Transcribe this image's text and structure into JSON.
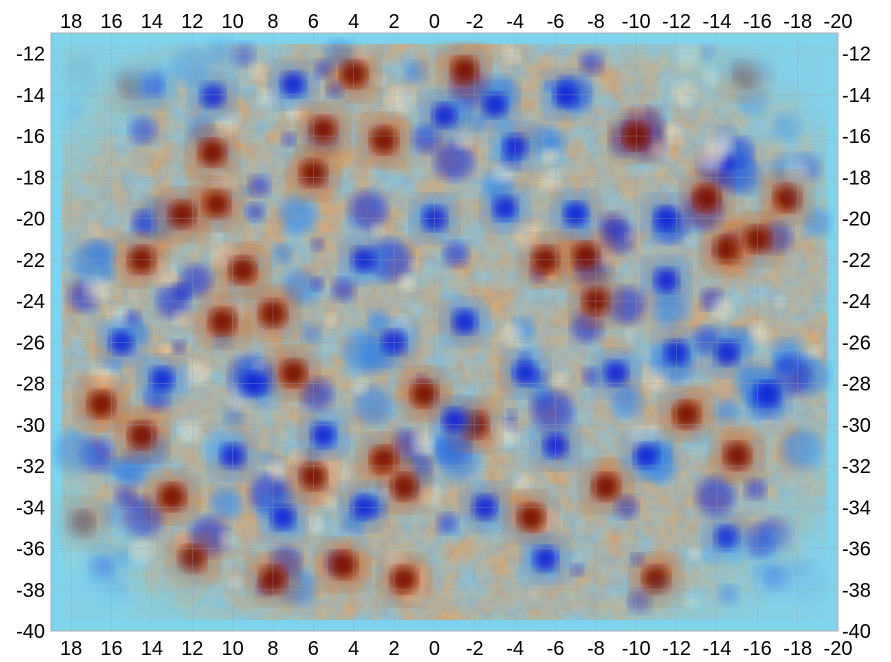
{
  "chart_data": {
    "type": "heatmap",
    "title": "",
    "xlabel": "",
    "ylabel": "",
    "x_ticks": [
      "18",
      "16",
      "14",
      "12",
      "10",
      "8",
      "6",
      "4",
      "2",
      "0",
      "-2",
      "-4",
      "-6",
      "-8",
      "-10",
      "-12",
      "-14",
      "-16",
      "-18",
      "-20"
    ],
    "y_ticks": [
      "-12",
      "-14",
      "-16",
      "-18",
      "-20",
      "-22",
      "-24",
      "-26",
      "-28",
      "-30",
      "-32",
      "-34",
      "-36",
      "-38",
      "-40"
    ],
    "xlim": [
      19,
      -20
    ],
    "ylim": [
      -40,
      -11
    ],
    "x_axis_reversed": true,
    "axes": [
      "top",
      "bottom",
      "left",
      "right"
    ],
    "grid": true,
    "colormap": [
      "#0b1fd6",
      "#2f7fe8",
      "#8fd3f0",
      "#fff3d0",
      "#f0a050",
      "#c8500a",
      "#7a0a00"
    ],
    "edge_color": "#7fd4ec",
    "hot_spots": [
      {
        "x": 17.5,
        "y": -12.8
      },
      {
        "x": 15,
        "y": -13.5
      },
      {
        "x": 11,
        "y": -16.8
      },
      {
        "x": 10.8,
        "y": -19.3
      },
      {
        "x": 12.5,
        "y": -19.8
      },
      {
        "x": 14.5,
        "y": -22
      },
      {
        "x": 8,
        "y": -24.6
      },
      {
        "x": 9.5,
        "y": -22.5
      },
      {
        "x": 5.5,
        "y": -15.7
      },
      {
        "x": 2.5,
        "y": -16.2
      },
      {
        "x": 6,
        "y": -17.8
      },
      {
        "x": 4,
        "y": -13
      },
      {
        "x": 16.5,
        "y": -29
      },
      {
        "x": 14.5,
        "y": -30.5
      },
      {
        "x": 17.5,
        "y": -34.8
      },
      {
        "x": 12,
        "y": -36.5
      },
      {
        "x": 8,
        "y": -37.5
      },
      {
        "x": 4.5,
        "y": -36.8
      },
      {
        "x": 1.5,
        "y": -37.5
      },
      {
        "x": 2.5,
        "y": -31.7
      },
      {
        "x": 1.5,
        "y": -33
      },
      {
        "x": 0.5,
        "y": -28.5
      },
      {
        "x": -2,
        "y": -30
      },
      {
        "x": -4.8,
        "y": -34.5
      },
      {
        "x": -1.5,
        "y": -12.8
      },
      {
        "x": -7.5,
        "y": -21.8
      },
      {
        "x": -10,
        "y": -16
      },
      {
        "x": -14.5,
        "y": -21.5
      },
      {
        "x": -16,
        "y": -21
      },
      {
        "x": -13.5,
        "y": -19
      },
      {
        "x": -17.5,
        "y": -19
      },
      {
        "x": -15.5,
        "y": -13
      },
      {
        "x": -8,
        "y": -24
      },
      {
        "x": 7,
        "y": -27.5
      },
      {
        "x": 10.5,
        "y": -25
      },
      {
        "x": -5.5,
        "y": -22
      },
      {
        "x": -12.5,
        "y": -29.5
      },
      {
        "x": -8.5,
        "y": -33
      },
      {
        "x": 6,
        "y": -32.5
      },
      {
        "x": 13,
        "y": -33.5
      },
      {
        "x": -11,
        "y": -37.5
      },
      {
        "x": -15,
        "y": -31.5
      }
    ],
    "cold_spots": [
      {
        "x": 14,
        "y": -13.5
      },
      {
        "x": 11,
        "y": -14
      },
      {
        "x": 7,
        "y": -13.5
      },
      {
        "x": -0.5,
        "y": -15
      },
      {
        "x": -3,
        "y": -14.5
      },
      {
        "x": -6.5,
        "y": -14
      },
      {
        "x": -4,
        "y": -16.5
      },
      {
        "x": 0,
        "y": -20
      },
      {
        "x": -3.5,
        "y": -19.5
      },
      {
        "x": -7,
        "y": -19.8
      },
      {
        "x": -11.5,
        "y": -20
      },
      {
        "x": -11.5,
        "y": -23
      },
      {
        "x": 15.5,
        "y": -26
      },
      {
        "x": 9,
        "y": -28
      },
      {
        "x": 5.5,
        "y": -30.5
      },
      {
        "x": 2,
        "y": -26
      },
      {
        "x": -1.5,
        "y": -25
      },
      {
        "x": -4.5,
        "y": -27.5
      },
      {
        "x": -12,
        "y": -26.5
      },
      {
        "x": -14.5,
        "y": -26.5
      },
      {
        "x": -16.5,
        "y": -28.5
      },
      {
        "x": -6,
        "y": -31
      },
      {
        "x": -10.5,
        "y": -31.5
      },
      {
        "x": -2.5,
        "y": -34
      },
      {
        "x": 3.5,
        "y": -34
      },
      {
        "x": -5.5,
        "y": -36.5
      },
      {
        "x": -14.5,
        "y": -35.5
      },
      {
        "x": -17,
        "y": -37.5
      },
      {
        "x": 10,
        "y": -31.5
      },
      {
        "x": 16.5,
        "y": -37
      },
      {
        "x": -9,
        "y": -27.5
      },
      {
        "x": 3.5,
        "y": -22
      },
      {
        "x": -1,
        "y": -29.8
      },
      {
        "x": 13.5,
        "y": -27.8
      },
      {
        "x": 7.5,
        "y": -34.5
      }
    ]
  }
}
